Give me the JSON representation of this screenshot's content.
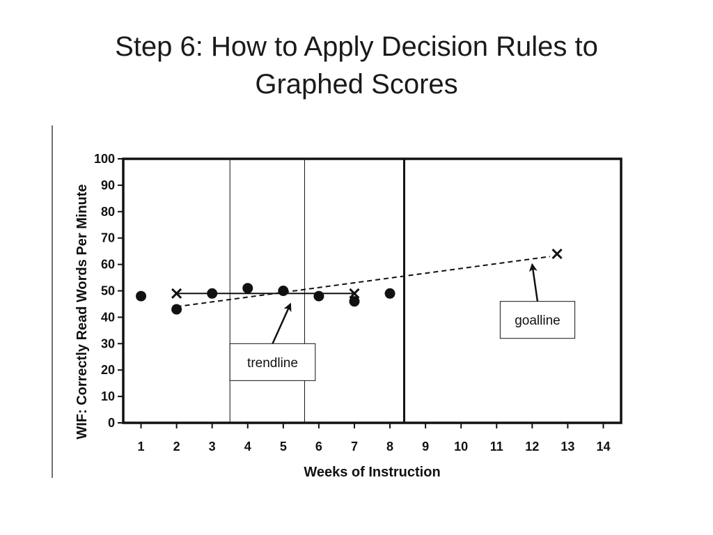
{
  "slide": {
    "title_line1": "Step 6: How to Apply Decision Rules to",
    "title_line2": "Graphed Scores"
  },
  "chart_data": {
    "type": "scatter",
    "xlabel": "Weeks of Instruction",
    "ylabel": "WIF: Correctly Read Words Per Minute",
    "xlim": [
      0.5,
      14.5
    ],
    "ylim": [
      0,
      100
    ],
    "x_ticks": [
      "1",
      "2",
      "3",
      "4",
      "5",
      "6",
      "7",
      "8",
      "9",
      "10",
      "11",
      "12",
      "13",
      "14"
    ],
    "y_ticks": [
      "0",
      "10",
      "20",
      "30",
      "40",
      "50",
      "60",
      "70",
      "80",
      "90",
      "100"
    ],
    "grid": false,
    "vertical_lines": [
      {
        "x": 3.5,
        "style": "thin"
      },
      {
        "x": 5.6,
        "style": "thin"
      },
      {
        "x": 8.4,
        "style": "thick"
      }
    ],
    "series": [
      {
        "marker": "circle",
        "x": [
          1,
          2,
          3,
          4,
          5,
          6,
          7,
          8
        ],
        "y": [
          48,
          43,
          49,
          51,
          50,
          48,
          46,
          49
        ]
      },
      {
        "marker": "x",
        "x": [
          2,
          7
        ],
        "y": [
          49,
          49
        ]
      },
      {
        "marker": "x",
        "x": [
          12.7
        ],
        "y": [
          64
        ]
      }
    ],
    "lines": [
      {
        "style": "solid",
        "x": [
          2,
          7
        ],
        "y": [
          49,
          49
        ]
      },
      {
        "style": "dashed",
        "x": [
          2,
          12.5
        ],
        "y": [
          44,
          63
        ]
      }
    ],
    "annotations": [
      {
        "text": "trendline",
        "arrow_to": [
          5.2,
          45
        ],
        "box": {
          "x": [
            3.5,
            5.9
          ],
          "y": [
            16,
            30
          ]
        }
      },
      {
        "text": "goalline",
        "arrow_to": [
          12,
          60
        ],
        "box": {
          "x": [
            11.1,
            13.2
          ],
          "y": [
            32,
            46
          ]
        }
      }
    ]
  }
}
